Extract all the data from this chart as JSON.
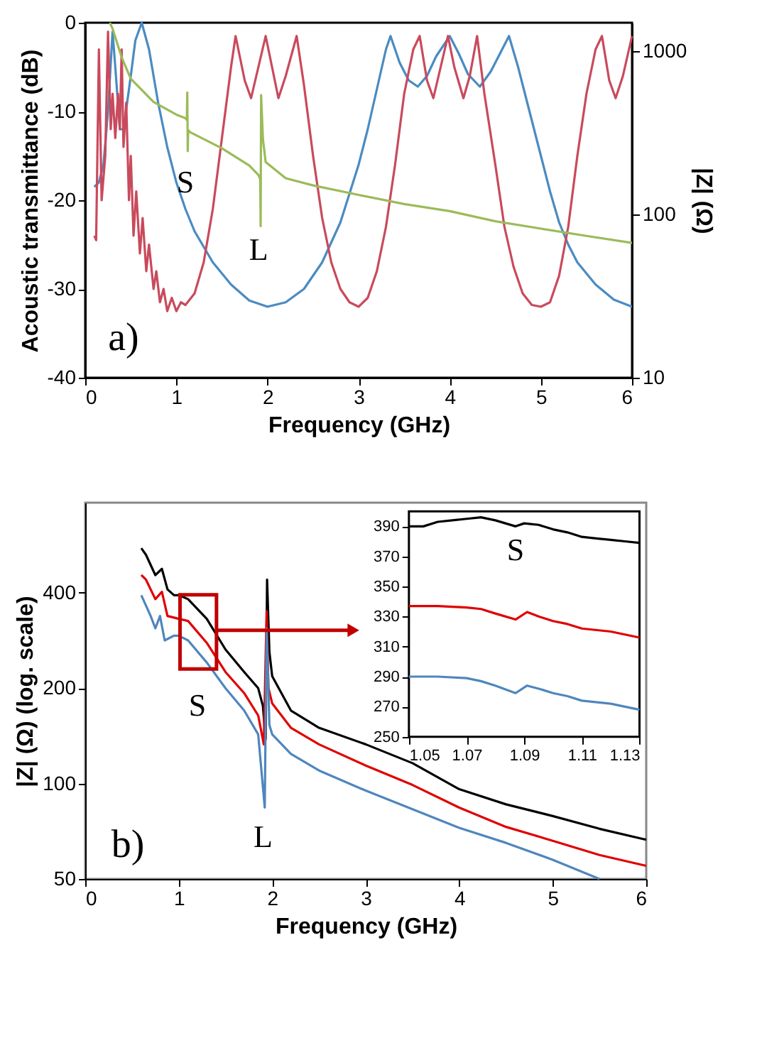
{
  "chart_data": [
    {
      "type": "line",
      "xlabel": "Frequency (GHz)",
      "ylabel": "Acoustic transmittance (dB)",
      "y2label": "|Z| (Ω)",
      "xlim": [
        0,
        6
      ],
      "xticks": [
        0,
        1,
        2,
        3,
        4,
        5,
        6
      ],
      "ylim": [
        -40,
        0
      ],
      "yticks": [
        -40,
        -30,
        -20,
        -10,
        0
      ],
      "y2lim": [
        10,
        1500
      ],
      "y2ticks": [
        10,
        100,
        1000
      ],
      "log": "y2",
      "grid": false,
      "series": [
        {
          "color": "#4a8bc2",
          "x": [
            0.1,
            0.15,
            0.2,
            0.25,
            0.3,
            0.33,
            0.38,
            0.42,
            0.5,
            0.55,
            0.62,
            0.7,
            0.8,
            0.9,
            1.0,
            1.1,
            1.2,
            1.4,
            1.6,
            1.8,
            2.0,
            2.2,
            2.4,
            2.6,
            2.8,
            3.0,
            3.1,
            3.2,
            3.3,
            3.35,
            3.45,
            3.55,
            3.65,
            3.75,
            3.85,
            4.0,
            4.1,
            4.2,
            4.33,
            4.45,
            4.55,
            4.65,
            4.75,
            4.9,
            5.0,
            5.1,
            5.2,
            5.3,
            5.4,
            5.6,
            5.8,
            6.0
          ],
          "values": [
            -18.5,
            -18,
            -16,
            -10,
            -1,
            -5,
            -12,
            -12,
            -6,
            -2,
            0,
            -3,
            -9,
            -14,
            -18,
            -21,
            -23.5,
            -27,
            -29.5,
            -31.3,
            -32,
            -31.5,
            -30,
            -27,
            -22.5,
            -16,
            -12,
            -7.5,
            -3,
            -1.5,
            -4.5,
            -6.5,
            -7.2,
            -6,
            -3.8,
            -1.5,
            -3.5,
            -5.8,
            -7.2,
            -5.5,
            -3.5,
            -1.5,
            -5,
            -11,
            -15,
            -19,
            -22.5,
            -25,
            -27,
            -29.5,
            -31.2,
            -32
          ]
        },
        {
          "color": "#c94a5c",
          "x": [
            0.1,
            0.12,
            0.15,
            0.18,
            0.22,
            0.25,
            0.28,
            0.3,
            0.33,
            0.36,
            0.38,
            0.4,
            0.42,
            0.45,
            0.48,
            0.5,
            0.53,
            0.56,
            0.6,
            0.63,
            0.67,
            0.7,
            0.75,
            0.78,
            0.82,
            0.86,
            0.9,
            0.95,
            1.0,
            1.05,
            1.1,
            1.2,
            1.3,
            1.4,
            1.5,
            1.6,
            1.65,
            1.75,
            1.82,
            1.9,
            1.98,
            2.05,
            2.12,
            2.2,
            2.32,
            2.4,
            2.5,
            2.6,
            2.7,
            2.8,
            2.9,
            3.0,
            3.1,
            3.2,
            3.3,
            3.4,
            3.5,
            3.6,
            3.67,
            3.75,
            3.82,
            3.9,
            3.98,
            4.05,
            4.15,
            4.22,
            4.3,
            4.38,
            4.5,
            4.6,
            4.7,
            4.8,
            4.9,
            5.0,
            5.1,
            5.2,
            5.3,
            5.4,
            5.5,
            5.6,
            5.67,
            5.75,
            5.82,
            5.9,
            6.0
          ],
          "values": [
            -24,
            -24.5,
            -3,
            -20,
            -15,
            -1,
            -12,
            -8,
            -13,
            -8,
            -12,
            -3,
            -14,
            -9,
            -20,
            -15,
            -24,
            -19,
            -26,
            -22,
            -28,
            -25,
            -30,
            -28,
            -31.5,
            -30,
            -32.5,
            -31,
            -32.5,
            -31.5,
            -31.8,
            -30.5,
            -27,
            -21,
            -13,
            -5,
            -1.5,
            -6.5,
            -8.5,
            -5,
            -1.5,
            -5,
            -8.5,
            -6,
            -1.5,
            -7,
            -15,
            -22,
            -27,
            -30,
            -31.5,
            -32,
            -31,
            -28,
            -23,
            -16,
            -8,
            -3,
            -1.5,
            -6.5,
            -8.5,
            -5,
            -1.5,
            -5,
            -8.5,
            -6,
            -1.5,
            -8,
            -16,
            -23,
            -27.5,
            -30.5,
            -31.8,
            -32,
            -31.5,
            -28.5,
            -23,
            -15,
            -8,
            -3,
            -1.5,
            -6.5,
            -8.5,
            -6,
            -1.5
          ]
        },
        {
          "color": "#9bbb59",
          "axis": "y2",
          "x": [
            0.27,
            0.3,
            0.4,
            0.5,
            0.75,
            1.0,
            1.1,
            1.115,
            1.12,
            1.125,
            1.13,
            1.15,
            1.5,
            1.8,
            1.9,
            1.92,
            1.925,
            1.93,
            1.95,
            1.98,
            2.2,
            2.5,
            3.0,
            3.5,
            4.0,
            4.5,
            5.0,
            5.5,
            6.0
          ],
          "values": [
            1500,
            1380,
            920,
            680,
            490,
            410,
            390,
            380,
            560,
            245,
            330,
            320,
            255,
            200,
            175,
            165,
            85,
            540,
            290,
            210,
            167,
            151,
            132,
            116,
            105,
            91,
            82,
            74,
            67
          ]
        }
      ],
      "annotations": [
        "S",
        "L",
        "a)"
      ]
    },
    {
      "type": "line",
      "xlabel": "Frequency (GHz)",
      "ylabel": "|Z| (Ω) (log. scale)",
      "xlim": [
        0,
        6
      ],
      "xticks": [
        0,
        1,
        2,
        3,
        4,
        5,
        6
      ],
      "ylim": [
        50,
        770
      ],
      "yticks": [
        50,
        100,
        200,
        400
      ],
      "log": true,
      "grid": false,
      "series": [
        {
          "color": "#000000",
          "x": [
            0.6,
            0.65,
            0.75,
            0.82,
            0.88,
            0.95,
            1.0,
            1.1,
            1.3,
            1.5,
            1.7,
            1.85,
            1.9,
            1.93,
            1.945,
            1.97,
            2.0,
            2.2,
            2.5,
            3.0,
            3.5,
            4.0,
            4.5,
            5.0,
            5.5,
            6.0
          ],
          "values": [
            553,
            527,
            455,
            476,
            410,
            393,
            393,
            382,
            331,
            265,
            225,
            200,
            176,
            138,
            440,
            260,
            218,
            170,
            150,
            133,
            116,
            96,
            86,
            79,
            72,
            66.5
          ]
        },
        {
          "color": "#e00000",
          "x": [
            0.6,
            0.65,
            0.75,
            0.82,
            0.88,
            0.95,
            1.0,
            1.1,
            1.3,
            1.5,
            1.7,
            1.85,
            1.91,
            1.94,
            1.96,
            2.0,
            2.2,
            2.5,
            3.0,
            3.5,
            4.0,
            4.5,
            5.0,
            5.5,
            6.0
          ],
          "values": [
            455,
            440,
            382,
            403,
            338,
            334,
            331,
            326,
            278,
            225,
            193,
            164,
            133,
            350,
            200,
            179,
            150,
            133,
            114,
            99,
            84,
            73,
            66,
            59.5,
            55
          ]
        },
        {
          "color": "#4f86bd",
          "x": [
            0.6,
            0.7,
            0.75,
            0.8,
            0.85,
            0.95,
            1.0,
            1.1,
            1.3,
            1.5,
            1.7,
            1.85,
            1.92,
            1.94,
            1.97,
            2.0,
            2.2,
            2.5,
            3.0,
            3.5,
            4.0,
            4.5,
            5.0,
            5.5
          ],
          "values": [
            393,
            338,
            309,
            338,
            283,
            293,
            293,
            283,
            241,
            200,
            170,
            143,
            84,
            309,
            153,
            143,
            124,
            110,
            95,
            83,
            72.5,
            65,
            57.5,
            50
          ]
        }
      ],
      "annotations": [
        "S",
        "L",
        "b)"
      ]
    },
    {
      "type": "line",
      "xlim": [
        1.05,
        1.13
      ],
      "xticks": [
        1.05,
        1.07,
        1.09,
        1.11,
        1.13
      ],
      "ylim": [
        250,
        400
      ],
      "yticks": [
        250,
        270,
        290,
        310,
        330,
        350,
        370,
        390
      ],
      "grid": false,
      "series": [
        {
          "color": "#000000",
          "x": [
            1.05,
            1.055,
            1.06,
            1.065,
            1.07,
            1.075,
            1.08,
            1.087,
            1.09,
            1.095,
            1.1,
            1.105,
            1.11,
            1.115,
            1.12,
            1.125,
            1.13
          ],
          "values": [
            390,
            390,
            393,
            394,
            395,
            396,
            394,
            390,
            392,
            391,
            388,
            386,
            383,
            382,
            381,
            380,
            379
          ]
        },
        {
          "color": "#e00000",
          "x": [
            1.05,
            1.06,
            1.07,
            1.075,
            1.08,
            1.087,
            1.091,
            1.095,
            1.1,
            1.105,
            1.11,
            1.12,
            1.13
          ],
          "values": [
            337,
            337,
            336,
            335,
            332,
            328,
            333,
            330,
            327,
            325,
            322,
            320,
            316
          ]
        },
        {
          "color": "#4f86bd",
          "x": [
            1.05,
            1.06,
            1.07,
            1.075,
            1.08,
            1.087,
            1.091,
            1.095,
            1.1,
            1.105,
            1.11,
            1.12,
            1.13
          ],
          "values": [
            290,
            290,
            289,
            287,
            284,
            279,
            284,
            282,
            279,
            277,
            274,
            272,
            268
          ]
        }
      ],
      "annotations": [
        "S"
      ]
    }
  ]
}
